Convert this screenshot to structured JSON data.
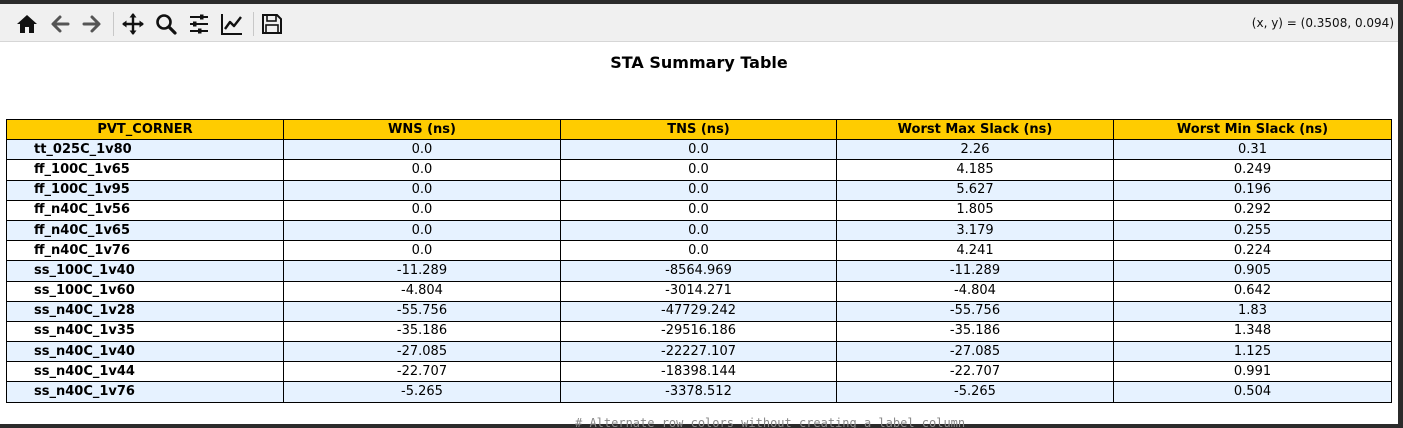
{
  "toolbar": {
    "buttons": [
      {
        "name": "home-icon"
      },
      {
        "name": "back-icon"
      },
      {
        "name": "forward-icon"
      },
      {
        "name": "pan-icon"
      },
      {
        "name": "zoom-icon"
      },
      {
        "name": "configure-subplots-icon"
      },
      {
        "name": "edit-axis-icon"
      },
      {
        "name": "save-icon"
      }
    ],
    "coords": "(x, y) = (0.3508, 0.094)"
  },
  "chart_data": {
    "type": "table",
    "title": "STA Summary Table",
    "header_color": "#ffcc00",
    "row_colors": [
      "#e6f2ff",
      "#ffffff"
    ],
    "columns": [
      "PVT_CORNER",
      "WNS (ns)",
      "TNS (ns)",
      "Worst Max Slack (ns)",
      "Worst Min Slack (ns)"
    ],
    "rows": [
      [
        "tt_025C_1v80",
        "0.0",
        "0.0",
        "2.26",
        "0.31"
      ],
      [
        "ff_100C_1v65",
        "0.0",
        "0.0",
        "4.185",
        "0.249"
      ],
      [
        "ff_100C_1v95",
        "0.0",
        "0.0",
        "5.627",
        "0.196"
      ],
      [
        "ff_n40C_1v56",
        "0.0",
        "0.0",
        "1.805",
        "0.292"
      ],
      [
        "ff_n40C_1v65",
        "0.0",
        "0.0",
        "3.179",
        "0.255"
      ],
      [
        "ff_n40C_1v76",
        "0.0",
        "0.0",
        "4.241",
        "0.224"
      ],
      [
        "ss_100C_1v40",
        "-11.289",
        "-8564.969",
        "-11.289",
        "0.905"
      ],
      [
        "ss_100C_1v60",
        "-4.804",
        "-3014.271",
        "-4.804",
        "0.642"
      ],
      [
        "ss_n40C_1v28",
        "-55.756",
        "-47729.242",
        "-55.756",
        "1.83"
      ],
      [
        "ss_n40C_1v35",
        "-35.186",
        "-29516.186",
        "-35.186",
        "1.348"
      ],
      [
        "ss_n40C_1v40",
        "-27.085",
        "-22227.107",
        "-27.085",
        "1.125"
      ],
      [
        "ss_n40C_1v44",
        "-22.707",
        "-18398.144",
        "-22.707",
        "0.991"
      ],
      [
        "ss_n40C_1v76",
        "-5.265",
        "-3378.512",
        "-5.265",
        "0.504"
      ]
    ]
  },
  "background_text": "# Alternate row colors without creating a label column"
}
